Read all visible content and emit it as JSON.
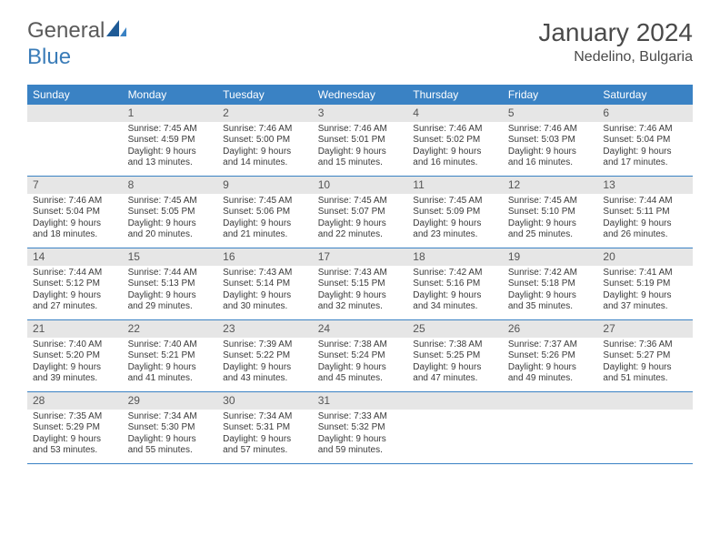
{
  "logo": {
    "word1": "General",
    "word2": "Blue"
  },
  "title": "January 2024",
  "location": "Nedelino, Bulgaria",
  "colors": {
    "header_bg": "#3a82c4",
    "header_fg": "#ffffff",
    "daynum_bg": "#e6e6e6",
    "rule": "#3a82c4",
    "text": "#3a3a3a"
  },
  "dow": [
    "Sunday",
    "Monday",
    "Tuesday",
    "Wednesday",
    "Thursday",
    "Friday",
    "Saturday"
  ],
  "weeks": [
    [
      null,
      {
        "n": "1",
        "sr": "7:45 AM",
        "ss": "4:59 PM",
        "dl": "9 hours and 13 minutes."
      },
      {
        "n": "2",
        "sr": "7:46 AM",
        "ss": "5:00 PM",
        "dl": "9 hours and 14 minutes."
      },
      {
        "n": "3",
        "sr": "7:46 AM",
        "ss": "5:01 PM",
        "dl": "9 hours and 15 minutes."
      },
      {
        "n": "4",
        "sr": "7:46 AM",
        "ss": "5:02 PM",
        "dl": "9 hours and 16 minutes."
      },
      {
        "n": "5",
        "sr": "7:46 AM",
        "ss": "5:03 PM",
        "dl": "9 hours and 16 minutes."
      },
      {
        "n": "6",
        "sr": "7:46 AM",
        "ss": "5:04 PM",
        "dl": "9 hours and 17 minutes."
      }
    ],
    [
      {
        "n": "7",
        "sr": "7:46 AM",
        "ss": "5:04 PM",
        "dl": "9 hours and 18 minutes."
      },
      {
        "n": "8",
        "sr": "7:45 AM",
        "ss": "5:05 PM",
        "dl": "9 hours and 20 minutes."
      },
      {
        "n": "9",
        "sr": "7:45 AM",
        "ss": "5:06 PM",
        "dl": "9 hours and 21 minutes."
      },
      {
        "n": "10",
        "sr": "7:45 AM",
        "ss": "5:07 PM",
        "dl": "9 hours and 22 minutes."
      },
      {
        "n": "11",
        "sr": "7:45 AM",
        "ss": "5:09 PM",
        "dl": "9 hours and 23 minutes."
      },
      {
        "n": "12",
        "sr": "7:45 AM",
        "ss": "5:10 PM",
        "dl": "9 hours and 25 minutes."
      },
      {
        "n": "13",
        "sr": "7:44 AM",
        "ss": "5:11 PM",
        "dl": "9 hours and 26 minutes."
      }
    ],
    [
      {
        "n": "14",
        "sr": "7:44 AM",
        "ss": "5:12 PM",
        "dl": "9 hours and 27 minutes."
      },
      {
        "n": "15",
        "sr": "7:44 AM",
        "ss": "5:13 PM",
        "dl": "9 hours and 29 minutes."
      },
      {
        "n": "16",
        "sr": "7:43 AM",
        "ss": "5:14 PM",
        "dl": "9 hours and 30 minutes."
      },
      {
        "n": "17",
        "sr": "7:43 AM",
        "ss": "5:15 PM",
        "dl": "9 hours and 32 minutes."
      },
      {
        "n": "18",
        "sr": "7:42 AM",
        "ss": "5:16 PM",
        "dl": "9 hours and 34 minutes."
      },
      {
        "n": "19",
        "sr": "7:42 AM",
        "ss": "5:18 PM",
        "dl": "9 hours and 35 minutes."
      },
      {
        "n": "20",
        "sr": "7:41 AM",
        "ss": "5:19 PM",
        "dl": "9 hours and 37 minutes."
      }
    ],
    [
      {
        "n": "21",
        "sr": "7:40 AM",
        "ss": "5:20 PM",
        "dl": "9 hours and 39 minutes."
      },
      {
        "n": "22",
        "sr": "7:40 AM",
        "ss": "5:21 PM",
        "dl": "9 hours and 41 minutes."
      },
      {
        "n": "23",
        "sr": "7:39 AM",
        "ss": "5:22 PM",
        "dl": "9 hours and 43 minutes."
      },
      {
        "n": "24",
        "sr": "7:38 AM",
        "ss": "5:24 PM",
        "dl": "9 hours and 45 minutes."
      },
      {
        "n": "25",
        "sr": "7:38 AM",
        "ss": "5:25 PM",
        "dl": "9 hours and 47 minutes."
      },
      {
        "n": "26",
        "sr": "7:37 AM",
        "ss": "5:26 PM",
        "dl": "9 hours and 49 minutes."
      },
      {
        "n": "27",
        "sr": "7:36 AM",
        "ss": "5:27 PM",
        "dl": "9 hours and 51 minutes."
      }
    ],
    [
      {
        "n": "28",
        "sr": "7:35 AM",
        "ss": "5:29 PM",
        "dl": "9 hours and 53 minutes."
      },
      {
        "n": "29",
        "sr": "7:34 AM",
        "ss": "5:30 PM",
        "dl": "9 hours and 55 minutes."
      },
      {
        "n": "30",
        "sr": "7:34 AM",
        "ss": "5:31 PM",
        "dl": "9 hours and 57 minutes."
      },
      {
        "n": "31",
        "sr": "7:33 AM",
        "ss": "5:32 PM",
        "dl": "9 hours and 59 minutes."
      },
      null,
      null,
      null
    ]
  ],
  "labels": {
    "sunrise": "Sunrise:",
    "sunset": "Sunset:",
    "daylight": "Daylight:"
  }
}
